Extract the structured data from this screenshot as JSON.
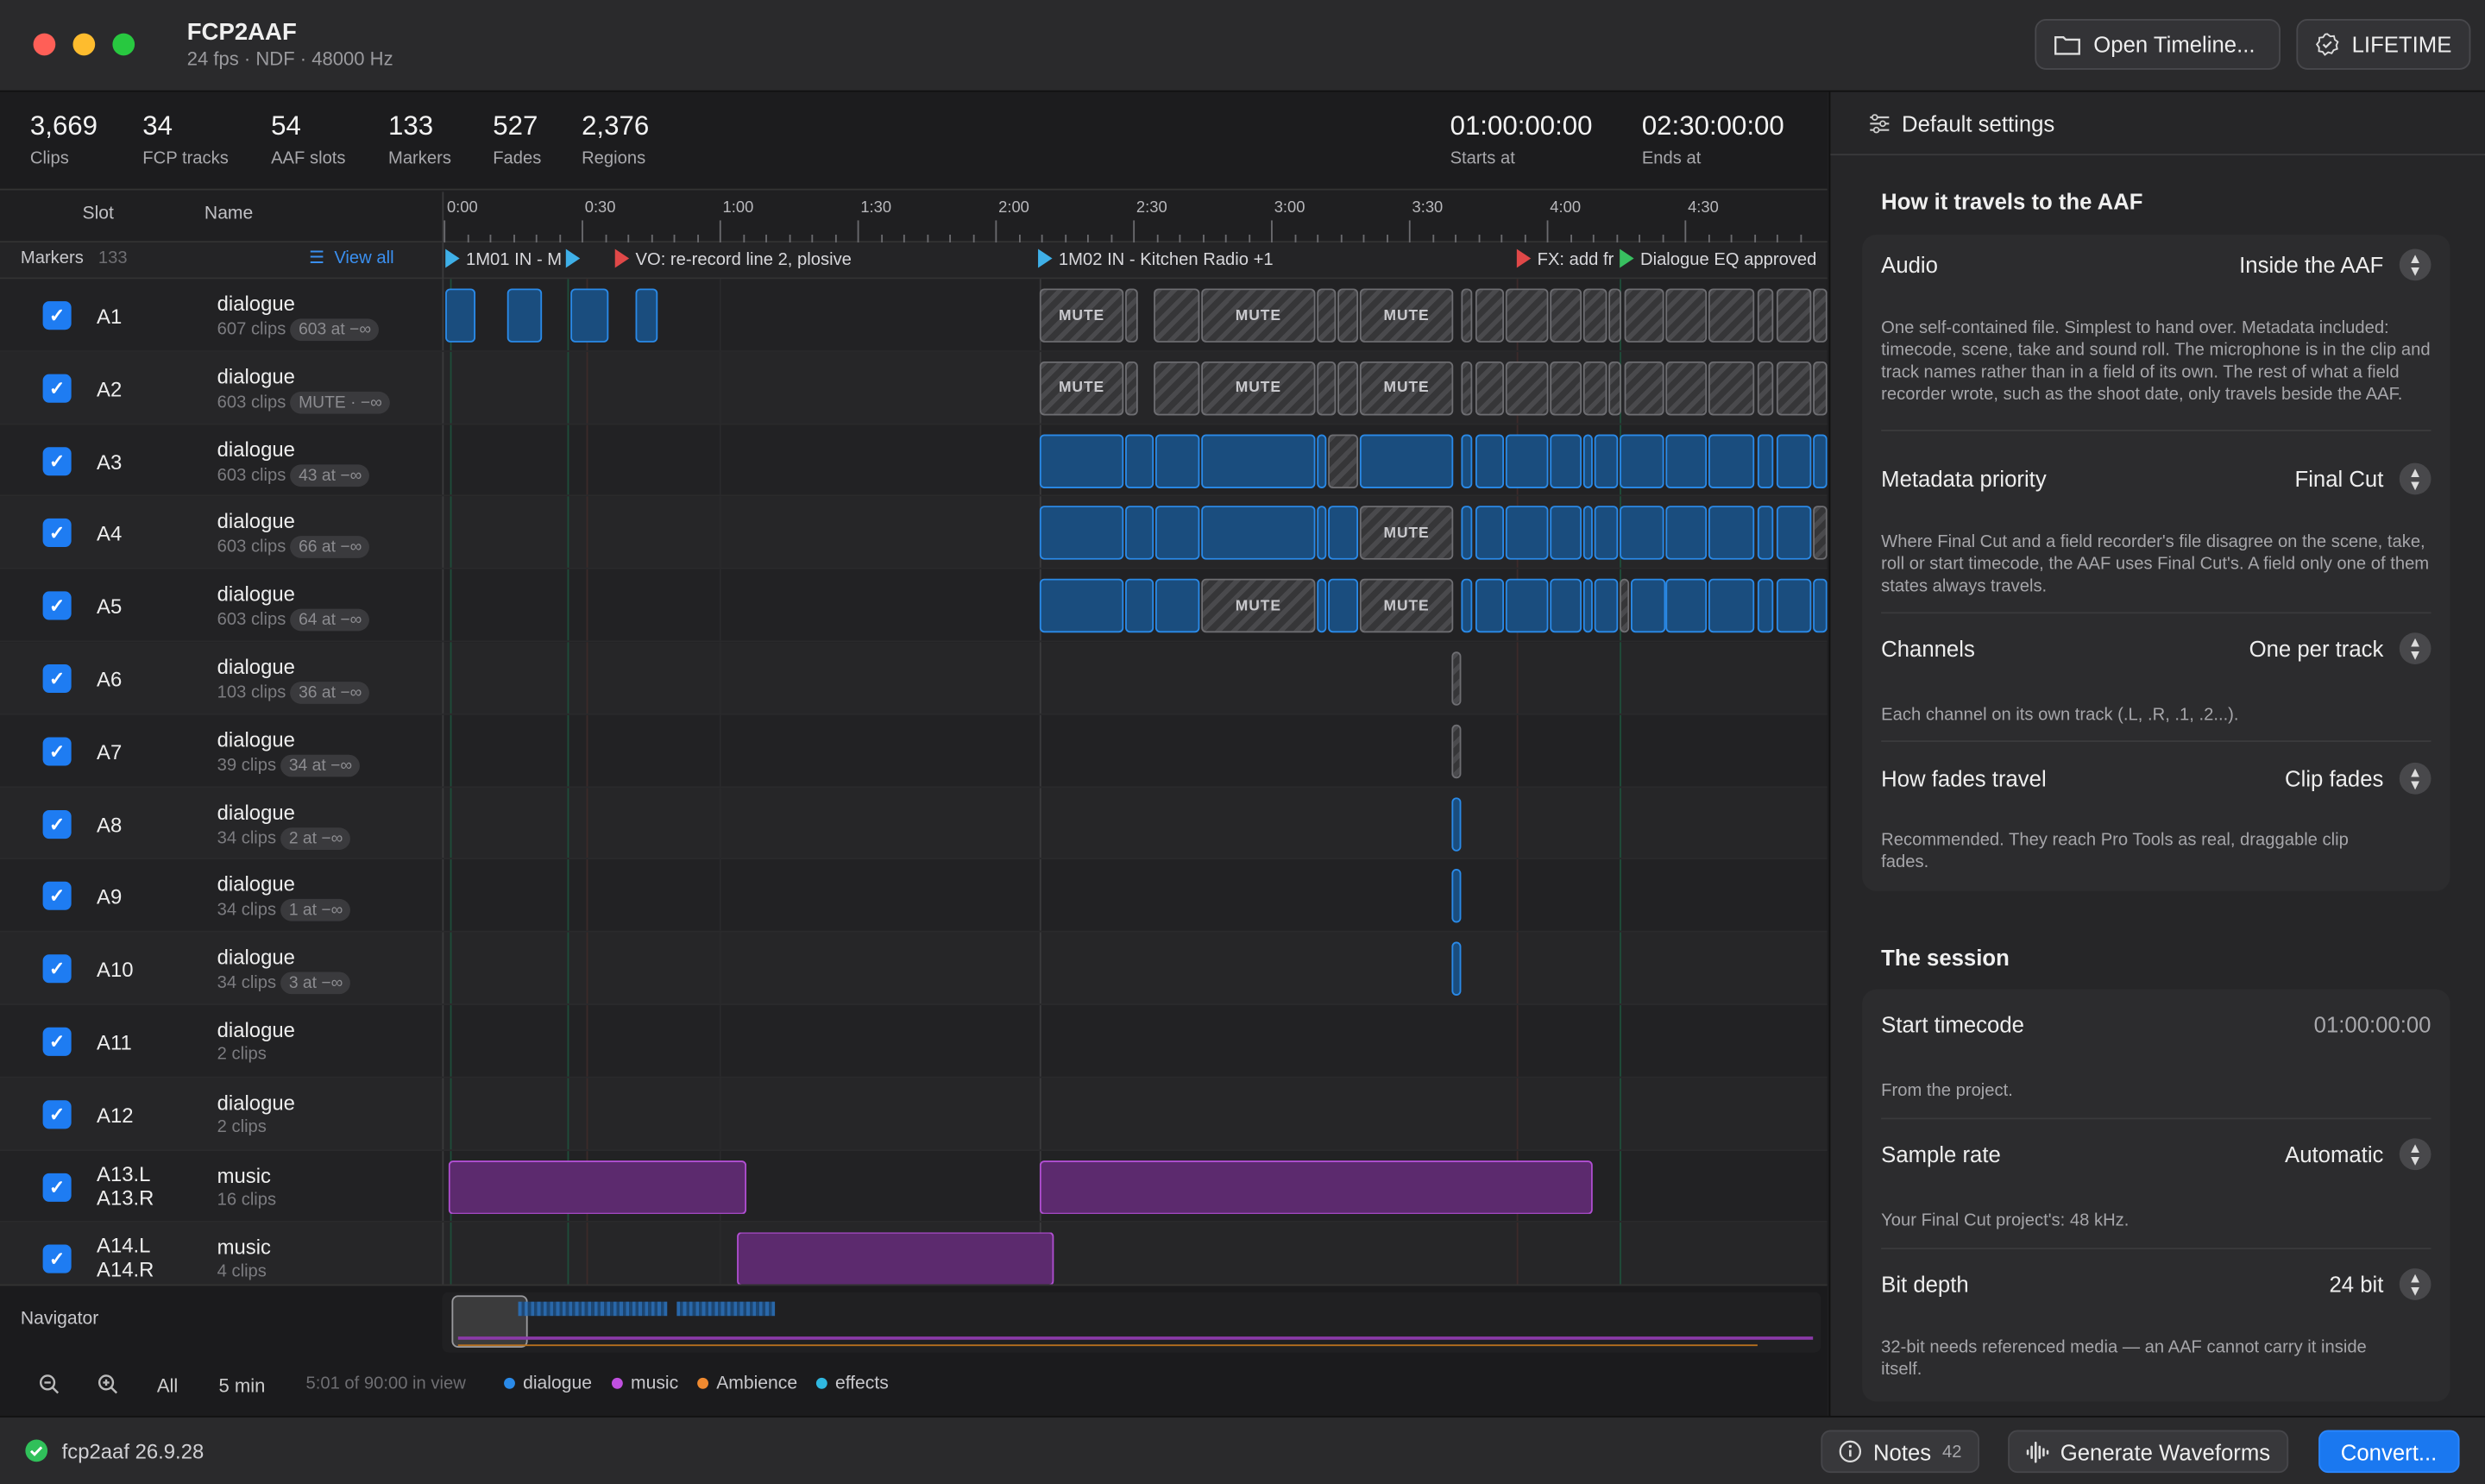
{
  "window": {
    "title": "FCP2AAF",
    "subtitle": "24 fps · NDF · 48000 Hz"
  },
  "toolbar": {
    "open_label": "Open Timeline...",
    "license_label": "LIFETIME"
  },
  "stats": [
    {
      "value": "3,669",
      "label": "Clips"
    },
    {
      "value": "34",
      "label": "FCP tracks"
    },
    {
      "value": "54",
      "label": "AAF slots"
    },
    {
      "value": "133",
      "label": "Markers"
    },
    {
      "value": "527",
      "label": "Fades"
    },
    {
      "value": "2,376",
      "label": "Regions"
    }
  ],
  "timecodes": {
    "start_value": "01:00:00:00",
    "start_label": "Starts at",
    "end_value": "02:30:00:00",
    "end_label": "Ends at"
  },
  "table_header": {
    "slot": "Slot",
    "name": "Name"
  },
  "ruler": [
    "0:00",
    "0:30",
    "1:00",
    "1:30",
    "2:00",
    "2:30",
    "3:00",
    "3:30",
    "4:00",
    "4:30"
  ],
  "markers": {
    "label": "Markers",
    "count": "133",
    "view_all": "View all",
    "items": [
      {
        "text": "1M01 IN - M",
        "color": "#3fb0e8"
      },
      {
        "text": "",
        "color": "#3fb0e8"
      },
      {
        "text": "VO: re-record line 2, plosive",
        "color": "#e04848"
      },
      {
        "text": "1M02 IN - Kitchen Radio  +1",
        "color": "#3fb0e8"
      },
      {
        "text": "FX: add fr",
        "color": "#e04848"
      },
      {
        "text": "Dialogue EQ approved",
        "color": "#38c060"
      }
    ]
  },
  "tracks": [
    {
      "slot": "A1",
      "name": "dialogue",
      "clips": "607 clips",
      "pill": "603 at −∞"
    },
    {
      "slot": "A2",
      "name": "dialogue",
      "clips": "603 clips",
      "pill": "MUTE · −∞"
    },
    {
      "slot": "A3",
      "name": "dialogue",
      "clips": "603 clips",
      "pill": "43 at −∞"
    },
    {
      "slot": "A4",
      "name": "dialogue",
      "clips": "603 clips",
      "pill": "66 at −∞"
    },
    {
      "slot": "A5",
      "name": "dialogue",
      "clips": "603 clips",
      "pill": "64 at −∞"
    },
    {
      "slot": "A6",
      "name": "dialogue",
      "clips": "103 clips",
      "pill": "36 at −∞"
    },
    {
      "slot": "A7",
      "name": "dialogue",
      "clips": "39 clips",
      "pill": "34 at −∞"
    },
    {
      "slot": "A8",
      "name": "dialogue",
      "clips": "34 clips",
      "pill": "2 at −∞"
    },
    {
      "slot": "A9",
      "name": "dialogue",
      "clips": "34 clips",
      "pill": "1 at −∞"
    },
    {
      "slot": "A10",
      "name": "dialogue",
      "clips": "34 clips",
      "pill": "3 at −∞"
    },
    {
      "slot": "A11",
      "name": "dialogue",
      "clips": "2 clips",
      "pill": ""
    },
    {
      "slot": "A12",
      "name": "dialogue",
      "clips": "2 clips",
      "pill": ""
    },
    {
      "slot": "A13.L",
      "slot2": "A13.R",
      "name": "music",
      "clips": "16 clips",
      "pill": ""
    },
    {
      "slot": "A14.L",
      "slot2": "A14.R",
      "name": "music",
      "clips": "4 clips",
      "pill": ""
    }
  ],
  "clip_labels": {
    "mute": "MUTE"
  },
  "navigator": {
    "label": "Navigator",
    "all": "All",
    "zoom_preset": "5 min",
    "in_view": "5:01 of 90:00 in view",
    "legend": [
      {
        "name": "dialogue",
        "color": "#2a8ae8"
      },
      {
        "name": "music",
        "color": "#c050e0"
      },
      {
        "name": "Ambience",
        "color": "#f08a30"
      },
      {
        "name": "effects",
        "color": "#30b8e0"
      }
    ]
  },
  "settings": {
    "header": "Default settings",
    "section1": "How it travels to the AAF",
    "audio": {
      "label": "Audio",
      "value": "Inside the AAF",
      "note": "One self-contained file. Simplest to hand over. Metadata included: timecode, scene, take and sound roll. The microphone is in the clip and track names rather than in a field of its own. The rest of what a field recorder wrote, such as the shoot date, only travels beside the AAF."
    },
    "metadata": {
      "label": "Metadata priority",
      "value": "Final Cut",
      "note": "Where Final Cut and a field recorder's file disagree on the scene, take, roll or start timecode, the AAF uses Final Cut's. A field only one of them states always travels."
    },
    "channels": {
      "label": "Channels",
      "value": "One per track",
      "note": "Each channel on its own track (.L, .R, .1, .2...)."
    },
    "fades": {
      "label": "How fades travel",
      "value": "Clip fades",
      "note": "Recommended. They reach Pro Tools as real, draggable clip fades."
    },
    "section2": "The session",
    "start_tc": {
      "label": "Start timecode",
      "value": "01:00:00:00",
      "note": "From the project."
    },
    "sample_rate": {
      "label": "Sample rate",
      "value": "Automatic",
      "note": "Your Final Cut project's: 48 kHz."
    },
    "bit_depth": {
      "label": "Bit depth",
      "value": "24 bit",
      "note": "32-bit needs referenced media — an AAF cannot carry it inside itself."
    }
  },
  "status": {
    "version": "fcp2aaf 26.9.28",
    "notes_label": "Notes",
    "notes_count": "42",
    "waveforms_label": "Generate Waveforms",
    "convert_label": "Convert..."
  }
}
